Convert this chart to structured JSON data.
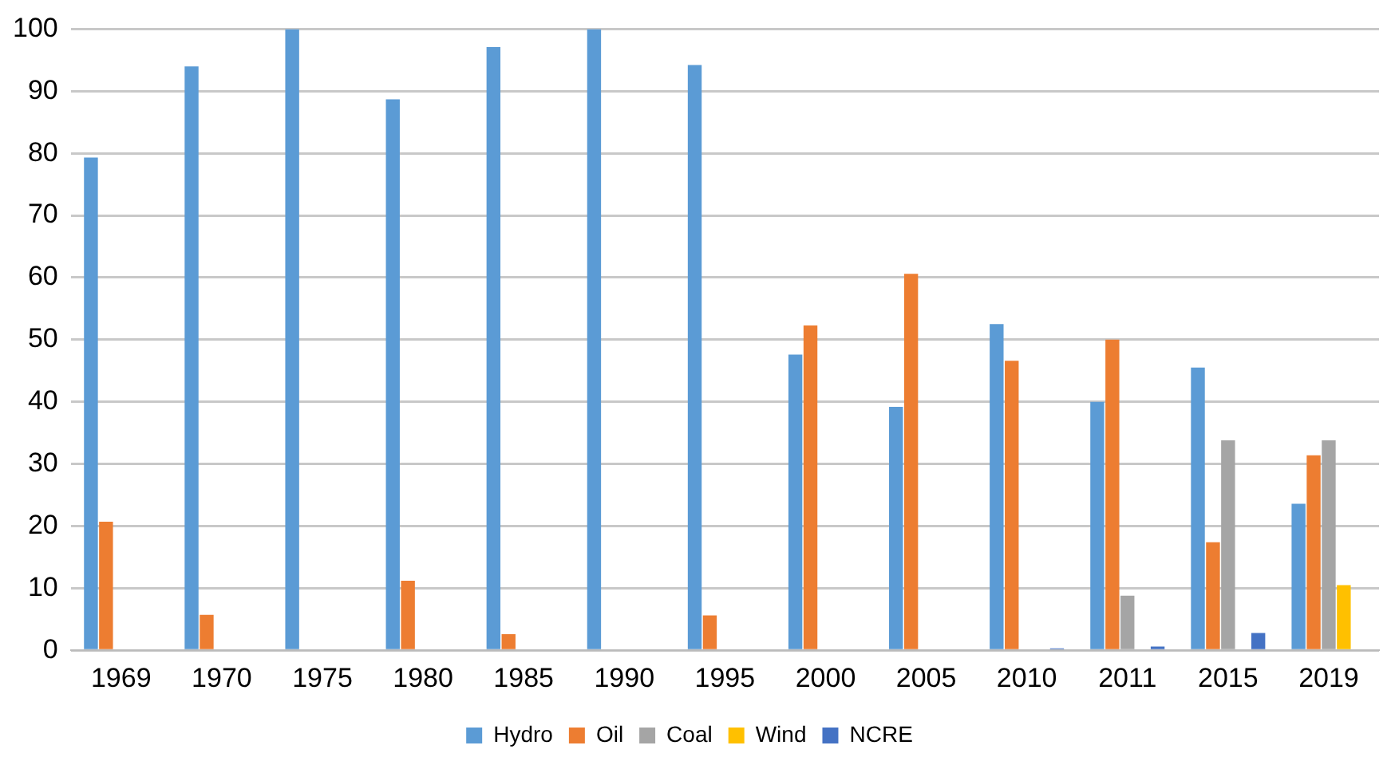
{
  "chart_data": {
    "type": "bar",
    "categories": [
      "1969",
      "1970",
      "1975",
      "1980",
      "1985",
      "1990",
      "1995",
      "2000",
      "2005",
      "2010",
      "2011",
      "2015",
      "2019"
    ],
    "series": [
      {
        "name": "Hydro",
        "color": "#5b9bd5",
        "values": [
          79.3,
          94,
          100,
          88.7,
          97.1,
          100,
          94.2,
          47.6,
          39.2,
          52.5,
          40,
          45.5,
          23.6
        ]
      },
      {
        "name": "Oil",
        "color": "#ed7d31",
        "values": [
          20.7,
          5.7,
          null,
          11.2,
          2.6,
          null,
          5.6,
          52.3,
          60.6,
          46.6,
          50,
          17.4,
          31.4
        ]
      },
      {
        "name": "Coal",
        "color": "#a5a5a5",
        "values": [
          null,
          null,
          null,
          null,
          null,
          null,
          null,
          null,
          null,
          null,
          8.8,
          33.8,
          33.8
        ]
      },
      {
        "name": "Wind",
        "color": "#ffc000",
        "values": [
          null,
          null,
          null,
          null,
          null,
          null,
          null,
          null,
          null,
          null,
          null,
          null,
          10.5
        ]
      },
      {
        "name": "NCRE",
        "color": "#4472c4",
        "values": [
          null,
          null,
          null,
          null,
          null,
          null,
          null,
          null,
          null,
          0.3,
          0.6,
          2.8,
          null
        ]
      }
    ],
    "ylim": [
      0,
      100
    ],
    "yticks": [
      0,
      10,
      20,
      30,
      40,
      50,
      60,
      70,
      80,
      90,
      100
    ],
    "grid": "y",
    "legend": "bottom"
  }
}
